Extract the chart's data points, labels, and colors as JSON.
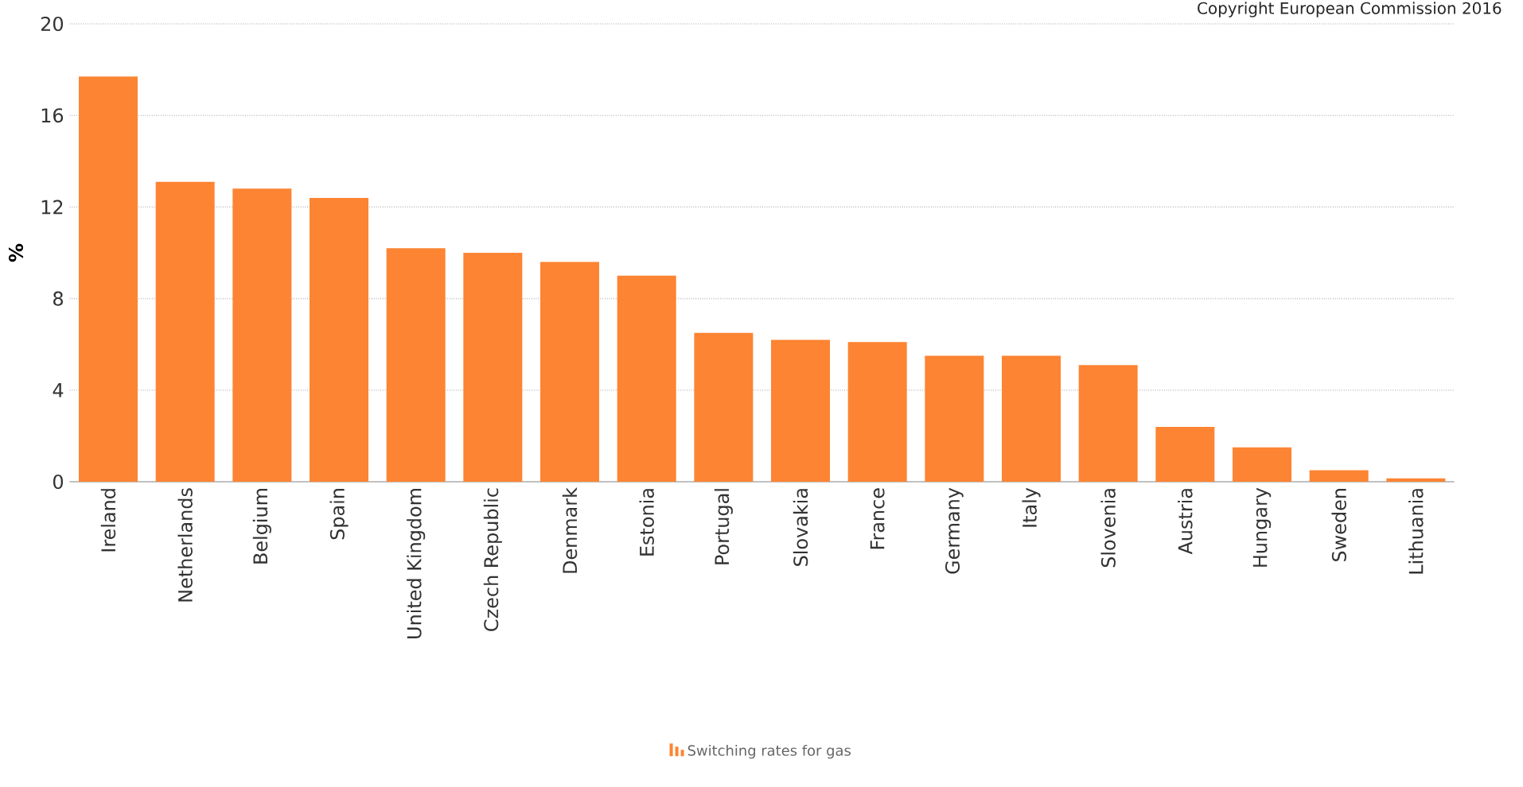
{
  "chart_data": {
    "type": "bar",
    "ylabel": "%",
    "categories": [
      "Ireland",
      "Netherlands",
      "Belgium",
      "Spain",
      "United Kingdom",
      "Czech Republic",
      "Denmark",
      "Estonia",
      "Portugal",
      "Slovakia",
      "France",
      "Germany",
      "Italy",
      "Slovenia",
      "Austria",
      "Hungary",
      "Sweden",
      "Lithuania"
    ],
    "series": [
      {
        "name": "Switching rates for gas",
        "color": "#fd8433",
        "values": [
          17.7,
          13.1,
          12.8,
          12.4,
          10.2,
          10.0,
          9.6,
          9.0,
          6.5,
          6.2,
          6.1,
          5.5,
          5.5,
          5.1,
          2.4,
          1.5,
          0.5,
          0.15
        ]
      }
    ],
    "ylim": [
      0,
      20
    ],
    "yticks": [
      0,
      4,
      8,
      12,
      16,
      20
    ],
    "grid": "y",
    "legend": "bottom",
    "annotations": [
      "Copyright European Commission 2016"
    ]
  }
}
